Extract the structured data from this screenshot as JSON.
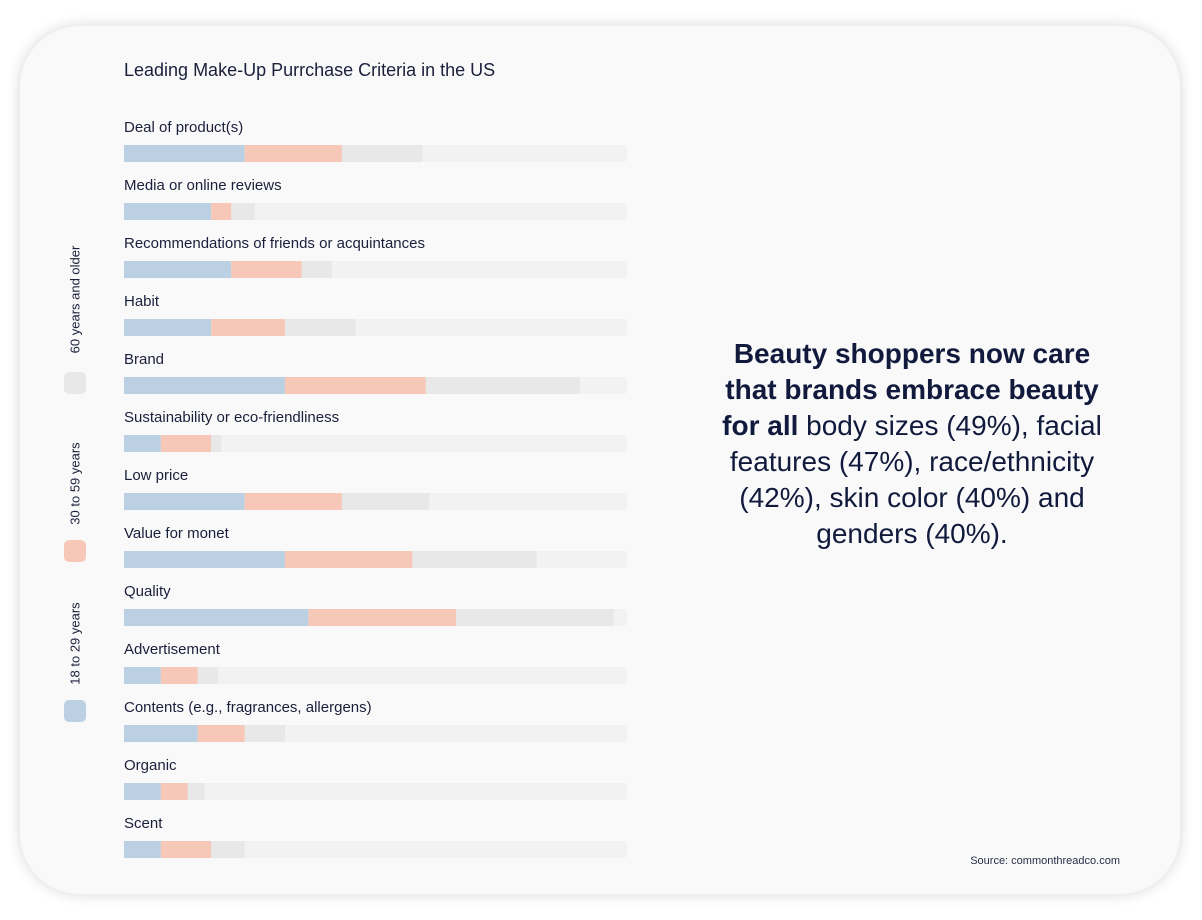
{
  "chart_data": {
    "type": "bar",
    "stacked": true,
    "title": "Leading Make-Up Purrchase Criteria in the US",
    "categories": [
      "Deal of product(s)",
      "Media or online reviews",
      "Recommendations of friends or acquintances",
      "Habit",
      "Brand",
      "Sustainability or eco-friendliness",
      "Low price",
      "Value for monet",
      "Quality",
      "Advertisement",
      "Contents (e.g., fragrances, allergens)",
      "Organic",
      "Scent"
    ],
    "series": [
      {
        "name": "18 to 29 years",
        "color": "#bcd0e3",
        "values": [
          18,
          13,
          16,
          13,
          24,
          5.5,
          18,
          24,
          27.5,
          5.5,
          11,
          5.5,
          5.5
        ]
      },
      {
        "name": "30  to 59 years",
        "color": "#f7c7b8",
        "values": [
          14.5,
          3,
          10.5,
          11,
          21,
          7.5,
          14.5,
          19,
          22,
          5.5,
          7,
          4,
          7.5
        ]
      },
      {
        "name": "60 years and older",
        "color": "#e8e8e8",
        "values": [
          12,
          3.5,
          4.5,
          10.5,
          23,
          1.5,
          13,
          18.5,
          23.5,
          3,
          6,
          2.5,
          5
        ]
      }
    ],
    "xlim": [
      0,
      75
    ],
    "grid": false,
    "legend_position": "left"
  },
  "headline": {
    "bold": "Beauty shoppers now care that brands embrace beauty for all",
    "regular": " body sizes (49%), facial features (47%), race/ethnicity (42%), skin color (40%) and genders (40%)."
  },
  "source": "Source: commonthreadco.com",
  "colors": {
    "track": "#f2f2f2",
    "text": "#1b1f3b"
  }
}
